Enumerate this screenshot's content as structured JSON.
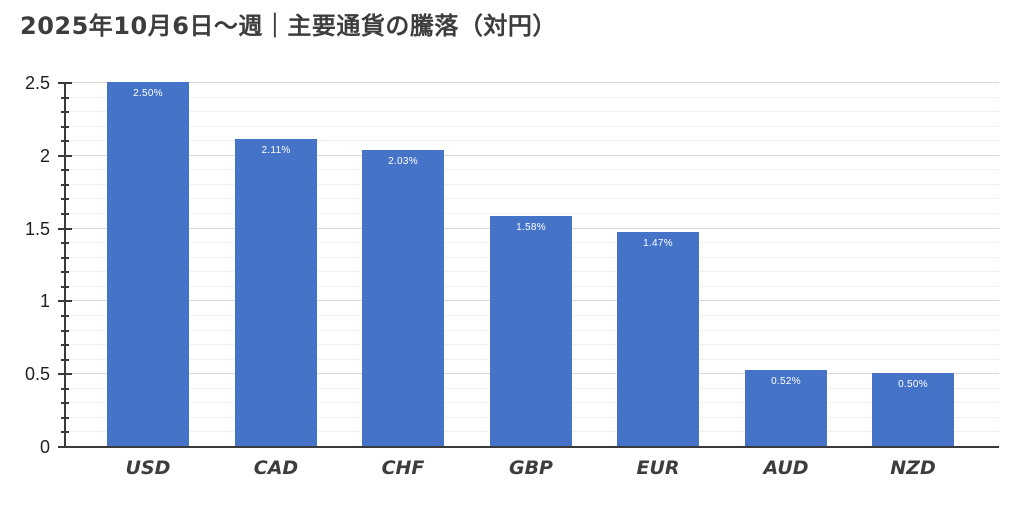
{
  "header": {
    "title": "2025年10月6日～週｜主要通貨の騰落（対円）"
  },
  "chart_data": {
    "type": "bar",
    "title": "2025年10月6日～週｜主要通貨の騰落（対円）",
    "categories": [
      "USD",
      "CAD",
      "CHF",
      "GBP",
      "EUR",
      "AUD",
      "NZD"
    ],
    "values": [
      2.5,
      2.11,
      2.03,
      1.58,
      1.47,
      0.52,
      0.5
    ],
    "value_labels": [
      "2.50%",
      "2.11%",
      "2.03%",
      "1.58%",
      "1.47%",
      "0.52%",
      "0.50%"
    ],
    "xlabel": "",
    "ylabel": "",
    "ylim": [
      0,
      2.5
    ],
    "yticks_major": [
      0,
      0.5,
      1,
      1.5,
      2,
      2.5
    ],
    "ytick_labels": [
      "0",
      "0.5",
      "1",
      "1.5",
      "2",
      "2.5"
    ],
    "minor_gridline_step": 0.1,
    "grid": "on",
    "legend": "none",
    "colors": {
      "bar": "#4573c7",
      "value_label": "#ffffff",
      "axis": "#3a3a3a",
      "major_gridline": "#d8d8d8",
      "minor_gridline": "#f0f0f0",
      "title": "#3d3d3d",
      "category_label": "#3d3d3d",
      "ytick_label": "#1f1f1f"
    }
  }
}
